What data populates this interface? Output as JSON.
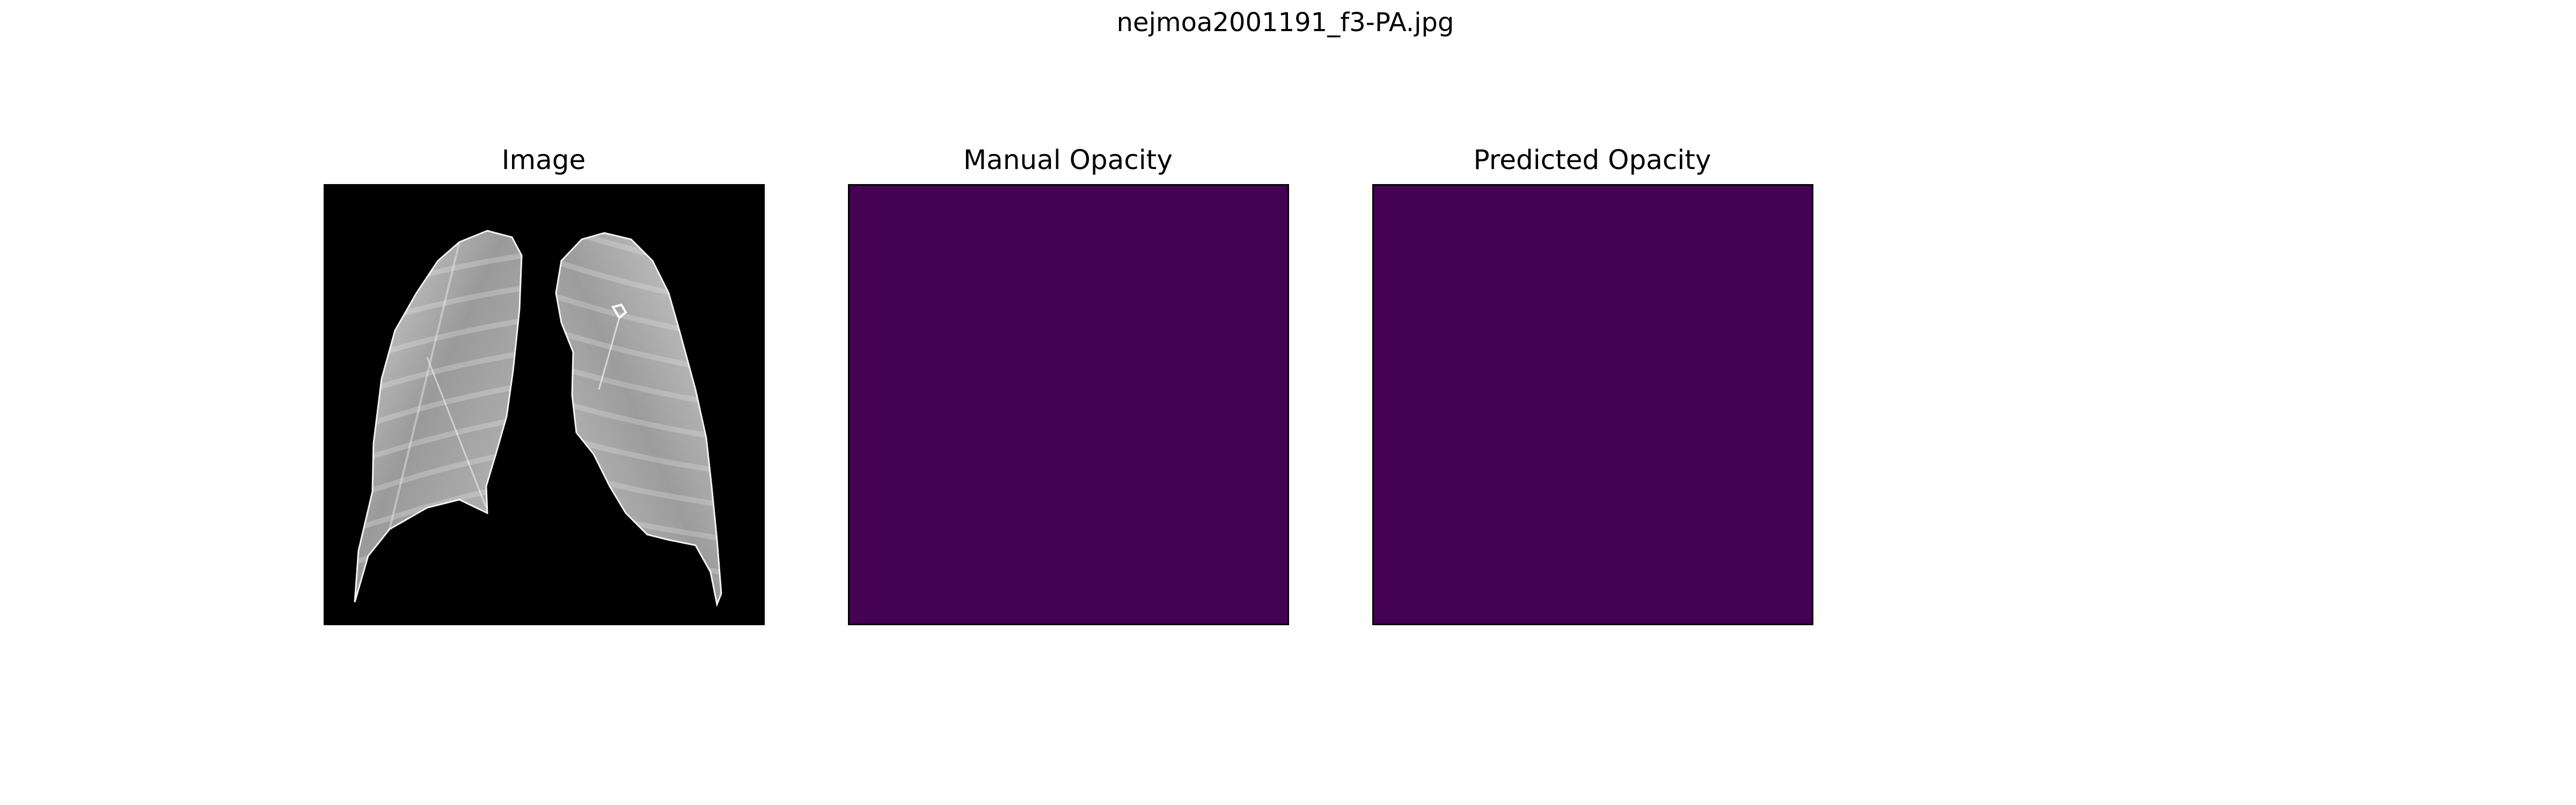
{
  "figure": {
    "title": "nejmoa2001191_f3-PA.jpg"
  },
  "panels": [
    {
      "title": "Image",
      "kind": "grayscale chest x-ray (lungs segmented on black background)"
    },
    {
      "title": "Manual Opacity",
      "fill_color": "#440154"
    },
    {
      "title": "Predicted Opacity",
      "fill_color": "#440154"
    }
  ],
  "colors": {
    "background": "#ffffff",
    "image_background": "#000000",
    "opacity_mask": "#440154",
    "lung_light": "#e6e6e6",
    "lung_mid": "#a8a8a8",
    "lung_dark": "#8a8a8a"
  }
}
